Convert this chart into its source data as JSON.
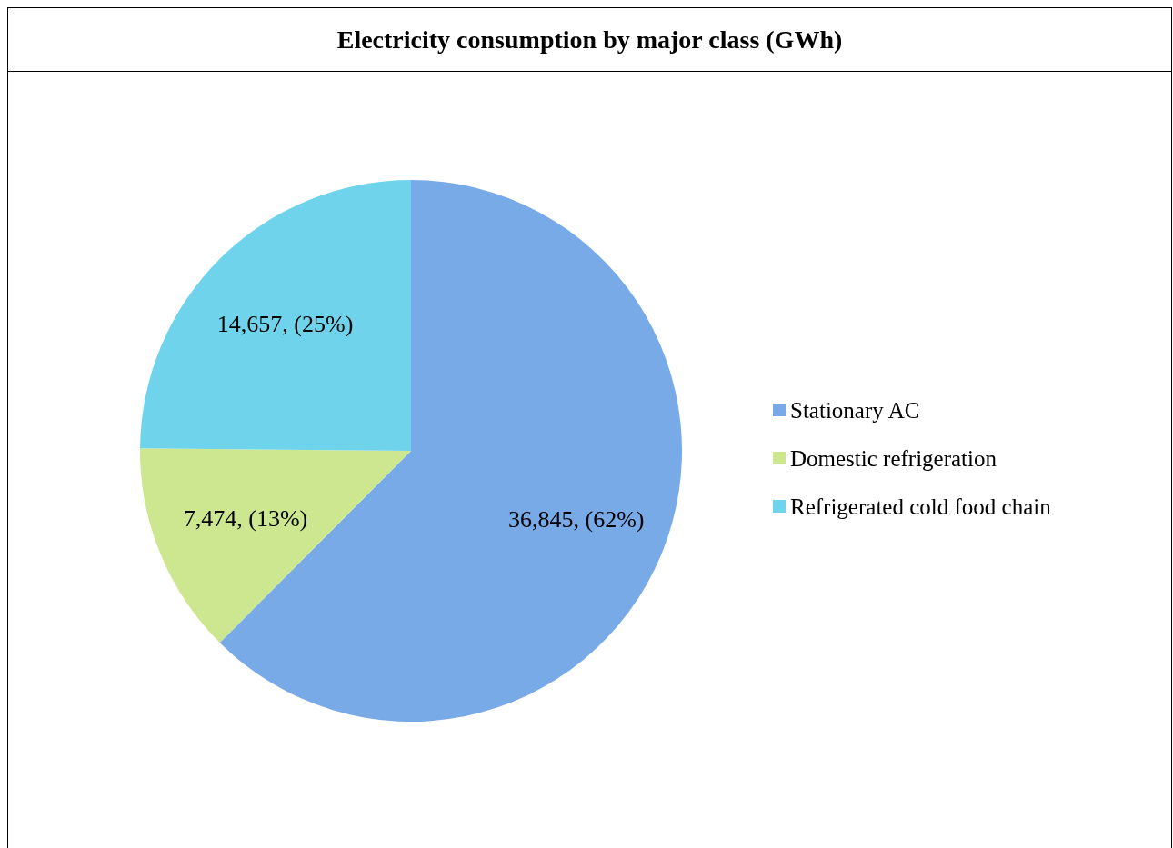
{
  "chart_data": {
    "type": "pie",
    "title": "Electricity consumption by major class (GWh)",
    "categories": [
      "Stationary AC",
      "Domestic refrigeration",
      "Refrigerated cold food chain"
    ],
    "values": [
      36845,
      7474,
      14657
    ],
    "colors": [
      "#79aae8",
      "#cce790",
      "#6fd3ec"
    ],
    "value_labels": [
      "36,845, (62%)",
      "7,474, (13%)",
      "14,657, (25%)"
    ],
    "legend": "right"
  }
}
